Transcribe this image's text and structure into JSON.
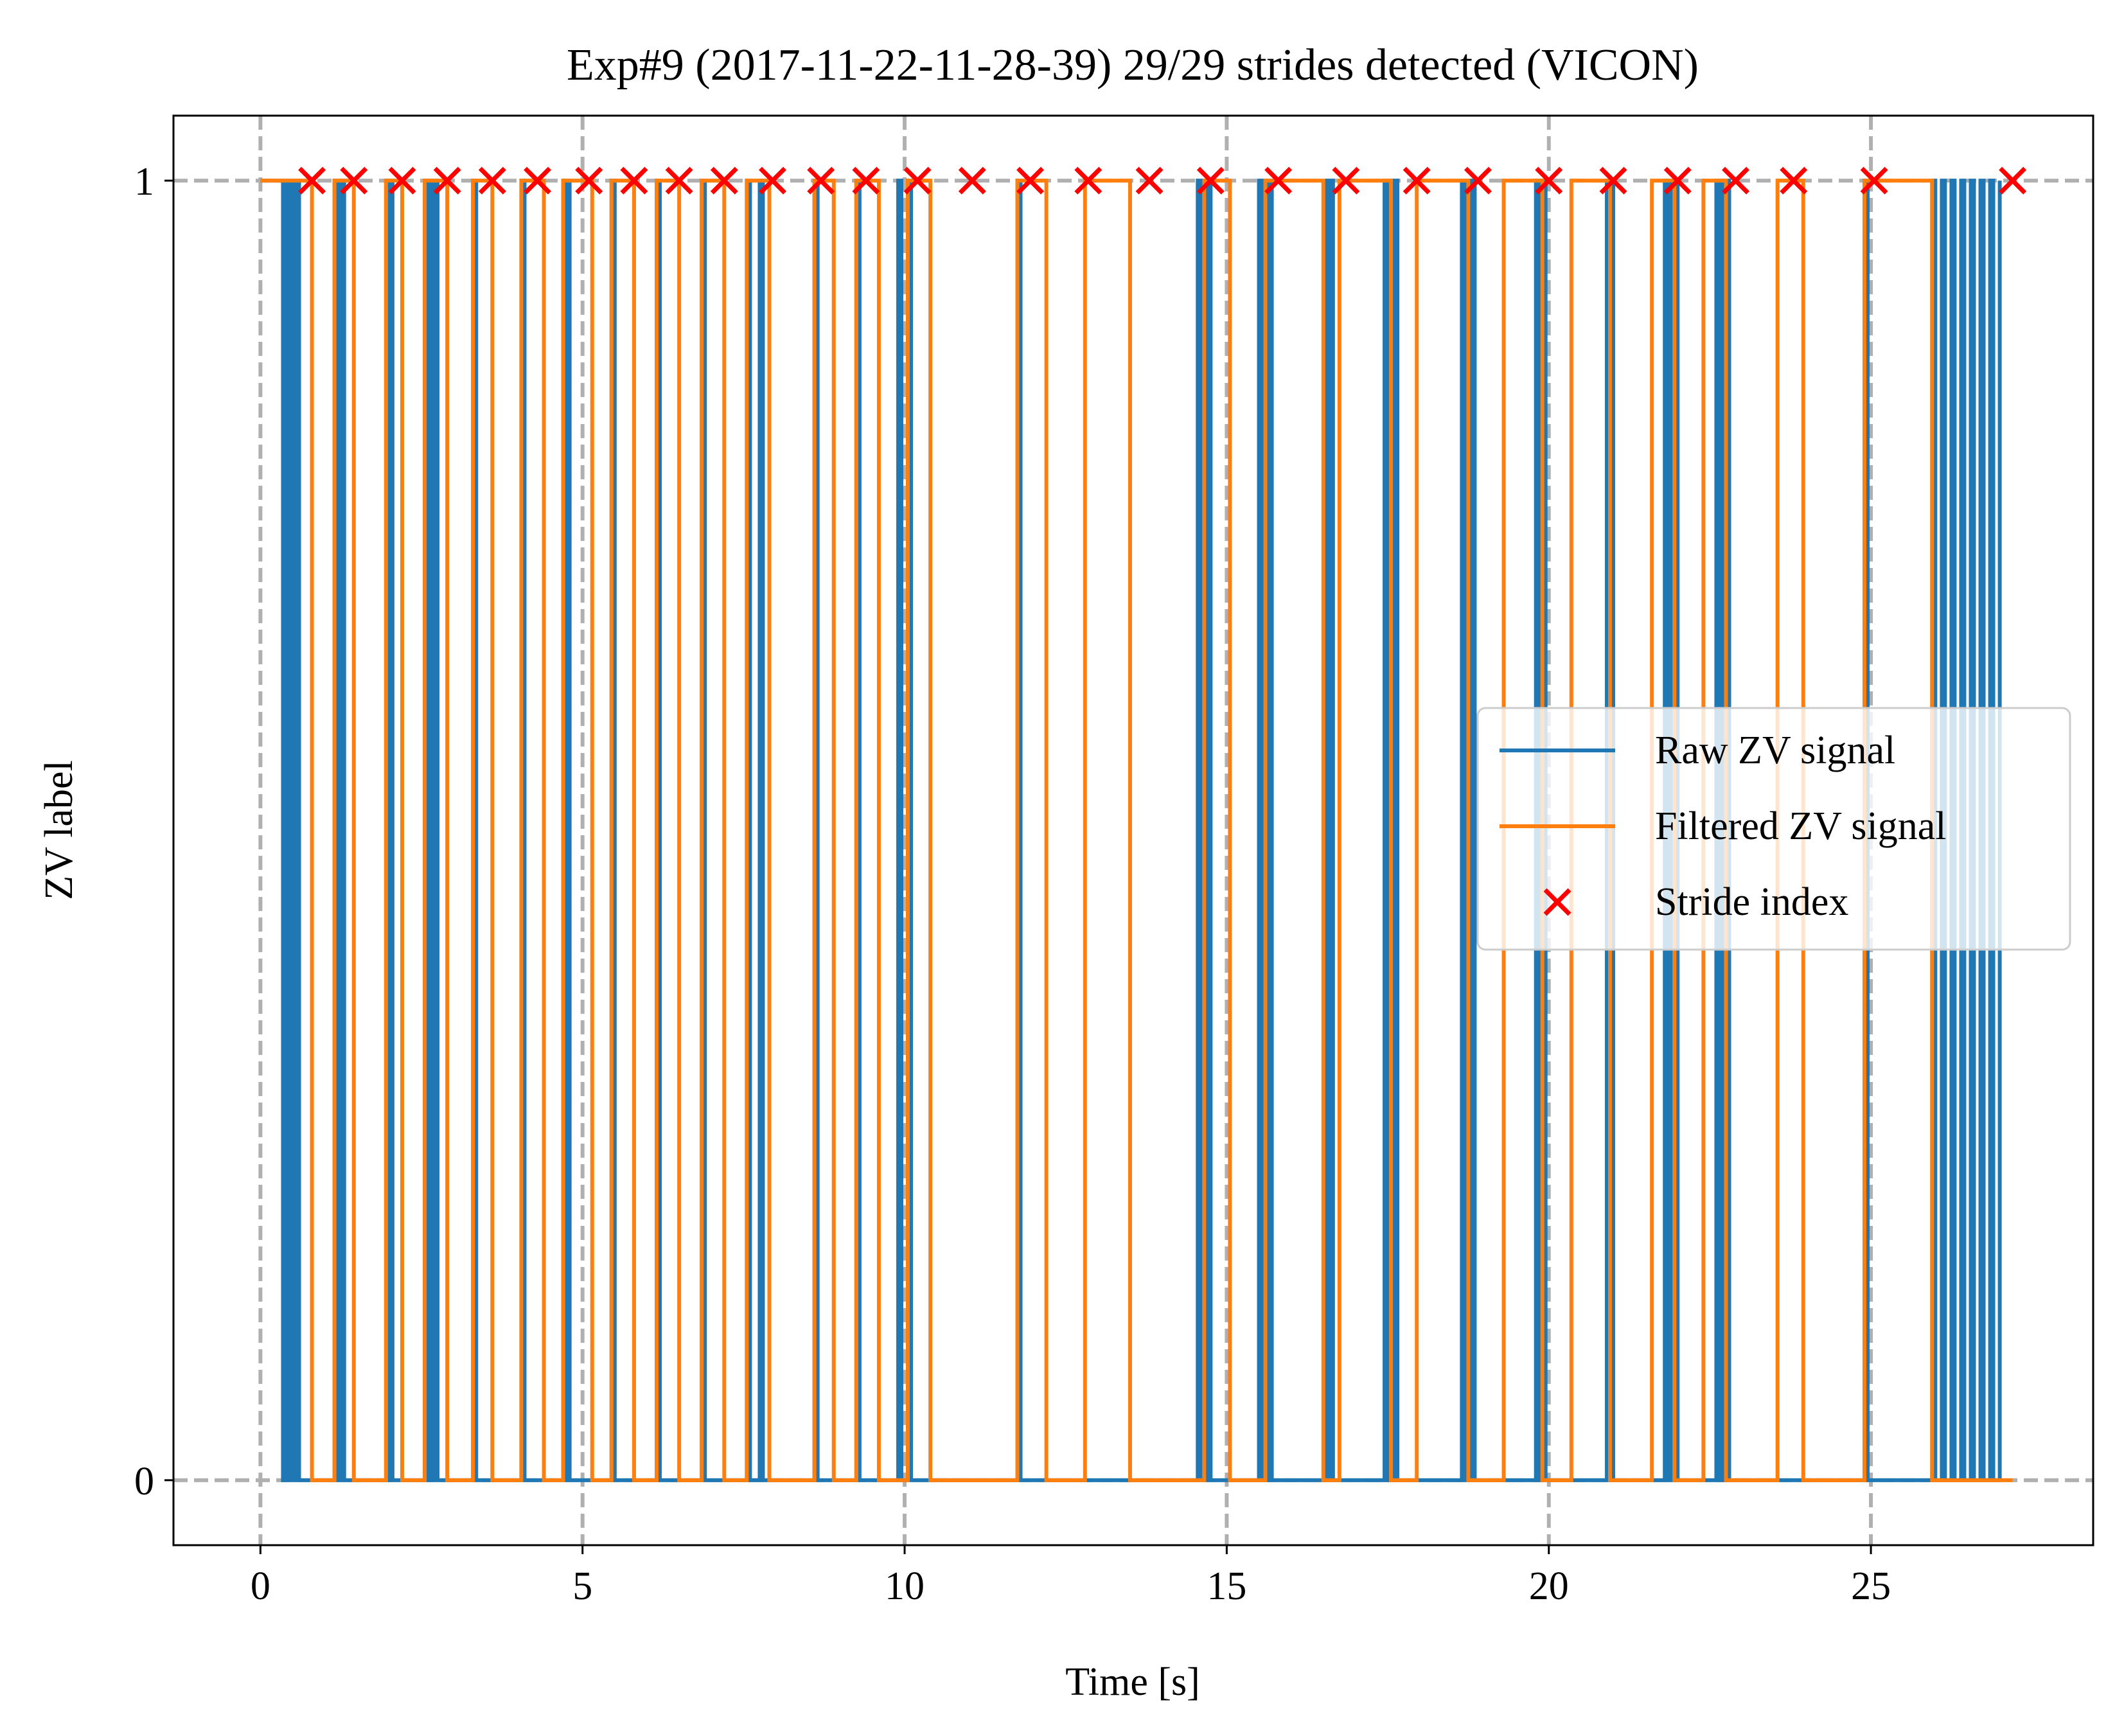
{
  "chart_data": {
    "type": "line",
    "title": "Exp#9 (2017-11-22-11-28-39) 29/29 strides detected (VICON)",
    "xlabel": "Time [s]",
    "ylabel": "ZV label",
    "xlim": [
      -1.35,
      28.45
    ],
    "ylim": [
      -0.05,
      1.05
    ],
    "xticks": [
      0,
      5,
      10,
      15,
      20,
      25
    ],
    "xtick_labels": [
      "0",
      "5",
      "10",
      "15",
      "20",
      "25"
    ],
    "yticks": [
      0,
      1
    ],
    "ytick_labels": [
      "0",
      "1"
    ],
    "grid": true,
    "legend_position": "center-right",
    "colors": {
      "raw": "#1f77b4",
      "filtered": "#ff7f0e",
      "stride": "#ff0000",
      "grid": "#b0b0b0"
    },
    "series": [
      {
        "name": "Raw ZV signal",
        "style": "line",
        "step_times": [
          0,
          0.35,
          0.38,
          0.4,
          0.43,
          0.45,
          0.48,
          0.5,
          0.53,
          0.55,
          0.58,
          0.6,
          1.15,
          1.17,
          1.2,
          1.22,
          1.25,
          1.3,
          1.95,
          1.97,
          2.0,
          2.05,
          2.55,
          2.57,
          2.6,
          2.62,
          2.65,
          2.7,
          2.72,
          2.75,
          3.3,
          3.35,
          4.05,
          4.1,
          4.7,
          4.72,
          4.75,
          4.8,
          5.45,
          5.5,
          6.15,
          6.2,
          6.85,
          6.9,
          7.55,
          7.6,
          7.75,
          7.8,
          8.6,
          8.65,
          9.25,
          9.3,
          9.9,
          9.95,
          10.05,
          10.1,
          11.75,
          11.8,
          14.55,
          14.57,
          14.6,
          14.62,
          14.65,
          14.7,
          14.72,
          14.75,
          15.5,
          15.52,
          15.55,
          15.6,
          15.65,
          15.7,
          16.55,
          16.58,
          16.62,
          16.65,
          17.45,
          17.48,
          17.52,
          17.55,
          17.6,
          17.65,
          18.65,
          18.68,
          18.72,
          18.75,
          18.8,
          18.85,
          19.8,
          19.82,
          19.85,
          19.88,
          19.92,
          19.95,
          20.9,
          20.92,
          20.95,
          21.0,
          21.8,
          21.82,
          21.85,
          21.9,
          21.95,
          22.0,
          22.6,
          22.62,
          22.65,
          22.7,
          22.75,
          22.8,
          24.9,
          24.95,
          25.95,
          26.0,
          26.1,
          26.15,
          26.25,
          26.3,
          26.4,
          26.45,
          26.55,
          26.6,
          26.7,
          26.75,
          26.85,
          26.9,
          27.0
        ],
        "levels_start": 1,
        "end_time": 27.0
      },
      {
        "name": "Filtered ZV signal",
        "style": "line",
        "step_times": [
          0,
          0.8,
          1.15,
          1.45,
          1.95,
          2.2,
          2.55,
          2.9,
          3.3,
          3.6,
          4.05,
          4.4,
          4.7,
          5.15,
          5.45,
          5.8,
          6.15,
          6.5,
          6.85,
          7.2,
          7.55,
          7.9,
          8.6,
          8.9,
          9.25,
          9.6,
          10.05,
          10.4,
          11.75,
          12.2,
          12.8,
          13.5,
          14.65,
          15.05,
          15.6,
          16.5,
          16.75,
          17.55,
          17.95,
          18.75,
          19.3,
          19.9,
          20.35,
          20.95,
          21.6,
          21.95,
          22.4,
          22.75,
          23.55,
          23.95,
          24.9,
          25.95
        ],
        "levels_start": 1,
        "end_time": 27.2
      },
      {
        "name": "Stride index",
        "style": "marker-x",
        "x": [
          0.8,
          1.45,
          2.2,
          2.9,
          3.6,
          4.3,
          5.1,
          5.8,
          6.5,
          7.2,
          7.95,
          8.7,
          9.4,
          10.2,
          11.05,
          11.95,
          12.85,
          13.8,
          14.75,
          15.8,
          16.85,
          17.95,
          18.9,
          20.0,
          21.0,
          22.0,
          22.9,
          23.8,
          25.05,
          27.2
        ],
        "y": [
          1,
          1,
          1,
          1,
          1,
          1,
          1,
          1,
          1,
          1,
          1,
          1,
          1,
          1,
          1,
          1,
          1,
          1,
          1,
          1,
          1,
          1,
          1,
          1,
          1,
          1,
          1,
          1,
          1,
          1
        ]
      }
    ]
  }
}
